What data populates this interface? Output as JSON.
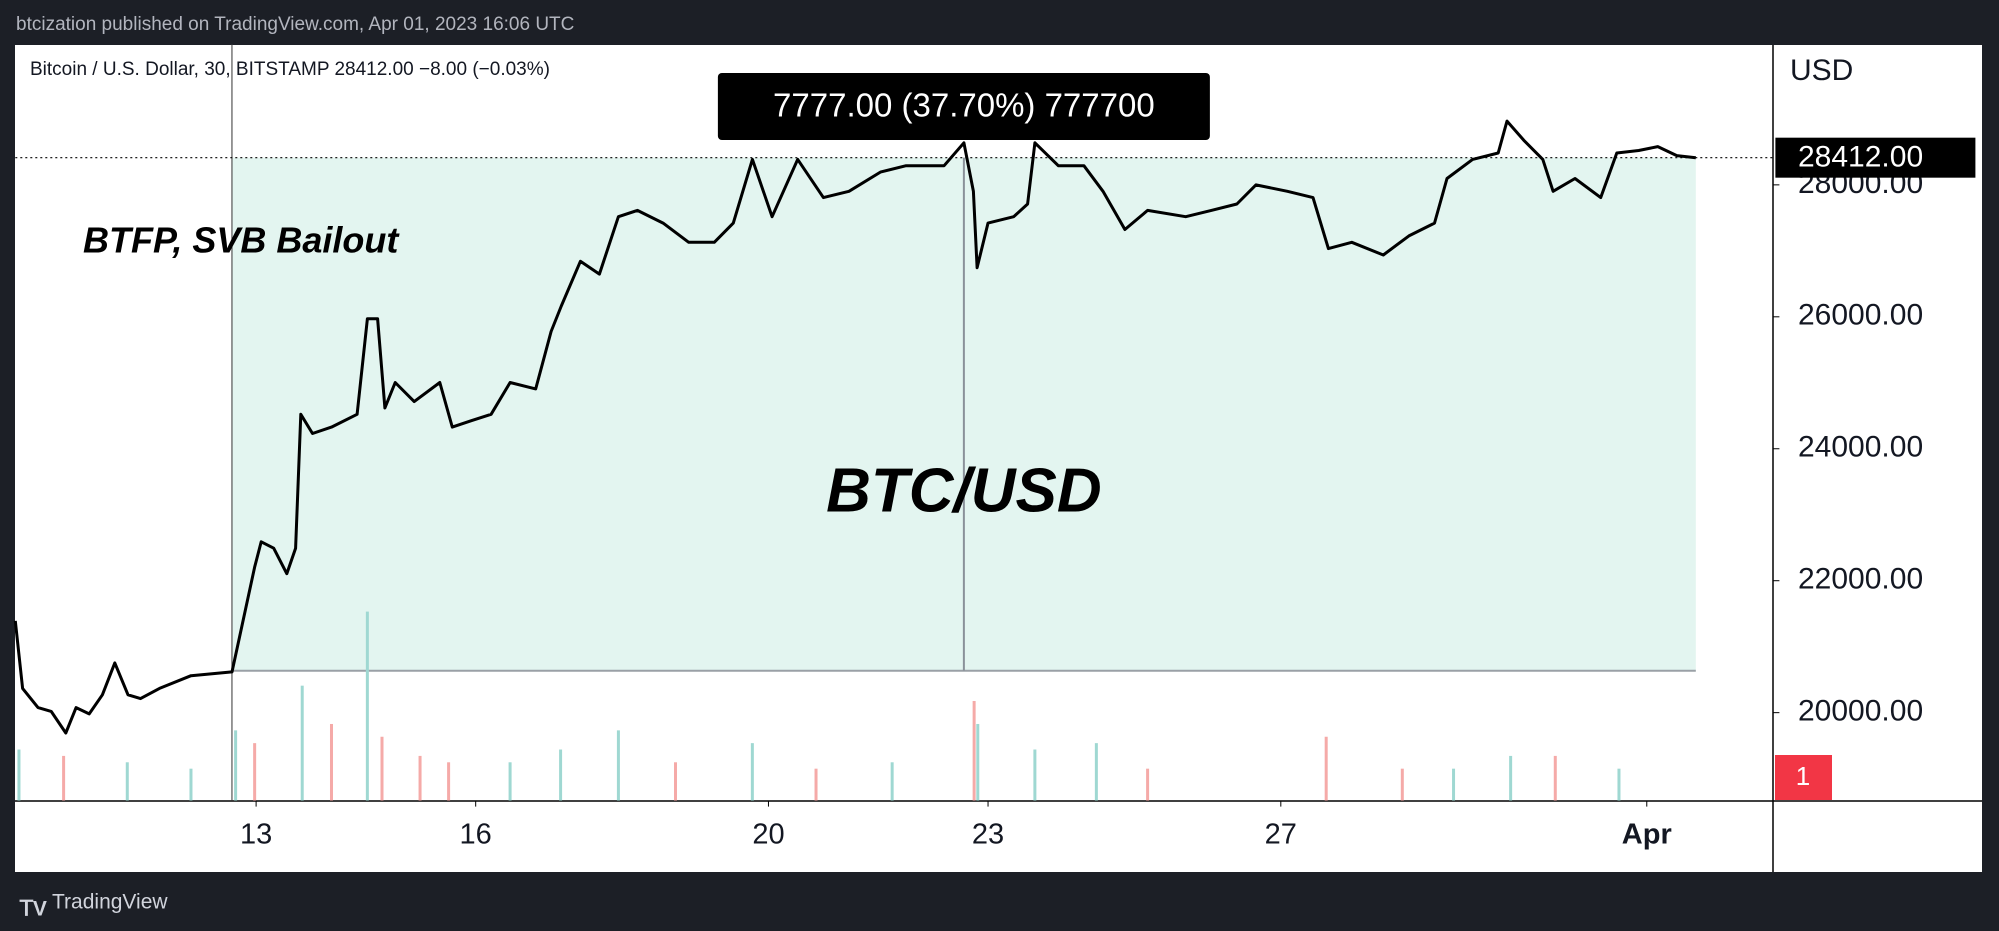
{
  "header": "btcization published on TradingView.com, Apr 01, 2023 16:06 UTC",
  "footer": "TradingView",
  "chart_data": {
    "type": "line",
    "title": "Bitcoin / U.S. Dollar, 30, BITSTAMP  28412.00  −8.00 (−0.03%)",
    "y_axis_title": "USD",
    "annotations": [
      "BTFP, SVB Bailout",
      "BTC/USD"
    ],
    "badge": "1",
    "color": "#000000",
    "x": [
      9.71,
      9.81,
      10.02,
      10.2,
      10.4,
      10.54,
      10.72,
      10.9,
      11.07,
      11.25,
      11.42,
      11.68,
      12.11,
      12.67,
      12.81,
      12.98,
      13.07,
      13.24,
      13.42,
      13.54,
      13.61,
      13.77,
      14.03,
      14.38,
      14.52,
      14.66,
      14.76,
      14.9,
      15.16,
      15.51,
      15.68,
      15.94,
      16.21,
      16.47,
      16.82,
      17.03,
      17.17,
      17.43,
      17.69,
      17.95,
      18.21,
      18.56,
      18.91,
      19.26,
      19.52,
      19.78,
      20.05,
      20.4,
      20.75,
      21.1,
      21.53,
      21.88,
      22.4,
      22.67,
      22.8,
      22.85,
      23.0,
      23.35,
      23.54,
      23.64,
      23.96,
      24.31,
      24.57,
      24.87,
      25.18,
      25.7,
      26.05,
      26.4,
      26.66,
      27.09,
      27.44,
      27.65,
      27.97,
      28.4,
      28.75,
      29.1,
      29.27,
      29.62,
      29.97,
      30.09,
      30.32,
      30.58,
      30.72,
      31.02,
      31.37,
      31.59,
      31.89,
      32.15,
      32.41,
      32.67
    ],
    "values": [
      21391,
      20367,
      20077,
      20019,
      19691,
      20077,
      19981,
      20271,
      20754,
      20271,
      20213,
      20367,
      20560,
      20618,
      21333,
      22203,
      22589,
      22493,
      22106,
      22493,
      24522,
      24232,
      24329,
      24522,
      25971,
      25971,
      24618,
      25005,
      24715,
      25005,
      24329,
      24425,
      24522,
      25005,
      24908,
      25778,
      26164,
      26841,
      26647,
      27517,
      27613,
      27420,
      27130,
      27130,
      27420,
      28386,
      27517,
      28386,
      27807,
      27903,
      28193,
      28290,
      28290,
      28638,
      27903,
      26744,
      27420,
      27517,
      27710,
      28638,
      28290,
      28290,
      27903,
      27323,
      27613,
      27517,
      27613,
      27710,
      28000,
      27903,
      27807,
      27034,
      27130,
      26937,
      27227,
      27420,
      28097,
      28386,
      28483,
      28966,
      28676,
      28386,
      27903,
      28097,
      27807,
      28483,
      28521,
      28580,
      28444,
      28412
    ],
    "xlim": [
      9.71,
      33.73
    ],
    "ylim": [
      18667,
      30126
    ],
    "xticks": [
      13,
      16,
      20,
      23,
      27,
      {
        "value": 32,
        "label": "Apr"
      }
    ],
    "yticks": [
      {
        "value": 20000,
        "label": "20000.00"
      },
      {
        "value": 22000,
        "label": "22000.00"
      },
      {
        "value": 24000,
        "label": "24000.00"
      },
      {
        "value": 26000,
        "label": "26000.00"
      },
      {
        "value": 28000,
        "label": "28000.00"
      }
    ],
    "last_price": {
      "value": 28412,
      "label": "28412.00"
    },
    "measure": {
      "from_x": 12.67,
      "to_x": 32.67,
      "from": 20635,
      "to": 28412,
      "label": "7777.00 (37.70%) 777700",
      "color": "#e3f5f0"
    },
    "volume": {
      "x": [
        9.76,
        10.37,
        11.24,
        12.11,
        12.72,
        12.98,
        13.63,
        14.03,
        14.52,
        14.72,
        15.24,
        15.63,
        16.47,
        17.16,
        17.95,
        18.73,
        19.78,
        20.65,
        21.69,
        22.81,
        22.86,
        23.64,
        24.48,
        25.18,
        27.62,
        28.66,
        29.36,
        30.14,
        30.75,
        31.62
      ],
      "values": [
        40,
        35,
        30,
        25,
        55,
        45,
        90,
        60,
        148,
        50,
        35,
        30,
        30,
        40,
        55,
        30,
        45,
        25,
        30,
        78,
        60,
        40,
        45,
        25,
        50,
        25,
        25,
        35,
        35,
        25
      ],
      "colors": [
        "#9fd8d2",
        "#f5aaa8",
        "#9fd8d2",
        "#9fd8d2",
        "#9fd8d2",
        "#f5aaa8",
        "#9fd8d2",
        "#f5aaa8",
        "#9fd8d2",
        "#f5aaa8",
        "#f5aaa8",
        "#f5aaa8",
        "#9fd8d2",
        "#9fd8d2",
        "#9fd8d2",
        "#f5aaa8",
        "#9fd8d2",
        "#f5aaa8",
        "#9fd8d2",
        "#f5aaa8",
        "#9fd8d2",
        "#9fd8d2",
        "#9fd8d2",
        "#f5aaa8",
        "#f5aaa8",
        "#f5aaa8",
        "#9fd8d2",
        "#9fd8d2",
        "#f5aaa8",
        "#9fd8d2"
      ]
    }
  }
}
